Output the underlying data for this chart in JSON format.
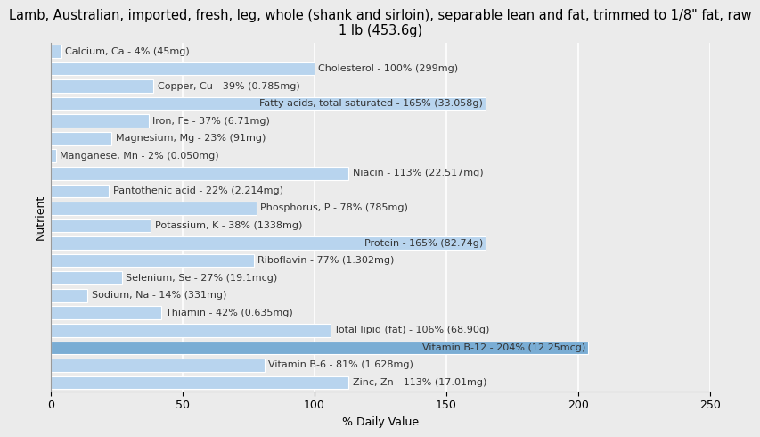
{
  "title": "Lamb, Australian, imported, fresh, leg, whole (shank and sirloin), separable lean and fat, trimmed to 1/8\" fat, raw\n1 lb (453.6g)",
  "xlabel": "% Daily Value",
  "ylabel": "Nutrient",
  "xlim": [
    0,
    250
  ],
  "background_color": "#ebebeb",
  "bar_color": "#b8d4ee",
  "bar_color_highlight": "#7aadd4",
  "nutrients": [
    {
      "label": "Calcium, Ca - 4% (45mg)",
      "value": 4
    },
    {
      "label": "Cholesterol - 100% (299mg)",
      "value": 100
    },
    {
      "label": "Copper, Cu - 39% (0.785mg)",
      "value": 39
    },
    {
      "label": "Fatty acids, total saturated - 165% (33.058g)",
      "value": 165
    },
    {
      "label": "Iron, Fe - 37% (6.71mg)",
      "value": 37
    },
    {
      "label": "Magnesium, Mg - 23% (91mg)",
      "value": 23
    },
    {
      "label": "Manganese, Mn - 2% (0.050mg)",
      "value": 2
    },
    {
      "label": "Niacin - 113% (22.517mg)",
      "value": 113
    },
    {
      "label": "Pantothenic acid - 22% (2.214mg)",
      "value": 22
    },
    {
      "label": "Phosphorus, P - 78% (785mg)",
      "value": 78
    },
    {
      "label": "Potassium, K - 38% (1338mg)",
      "value": 38
    },
    {
      "label": "Protein - 165% (82.74g)",
      "value": 165
    },
    {
      "label": "Riboflavin - 77% (1.302mg)",
      "value": 77
    },
    {
      "label": "Selenium, Se - 27% (19.1mcg)",
      "value": 27
    },
    {
      "label": "Sodium, Na - 14% (331mg)",
      "value": 14
    },
    {
      "label": "Thiamin - 42% (0.635mg)",
      "value": 42
    },
    {
      "label": "Total lipid (fat) - 106% (68.90g)",
      "value": 106
    },
    {
      "label": "Vitamin B-12 - 204% (12.25mcg)",
      "value": 204
    },
    {
      "label": "Vitamin B-6 - 81% (1.628mg)",
      "value": 81
    },
    {
      "label": "Zinc, Zn - 113% (17.01mg)",
      "value": 113
    }
  ],
  "highlight_index": 17,
  "xticks": [
    0,
    50,
    100,
    150,
    200,
    250
  ],
  "grid_color": "#ffffff",
  "title_fontsize": 10.5,
  "axis_label_fontsize": 9,
  "tick_fontsize": 9,
  "bar_label_fontsize": 8,
  "label_threshold": 150
}
